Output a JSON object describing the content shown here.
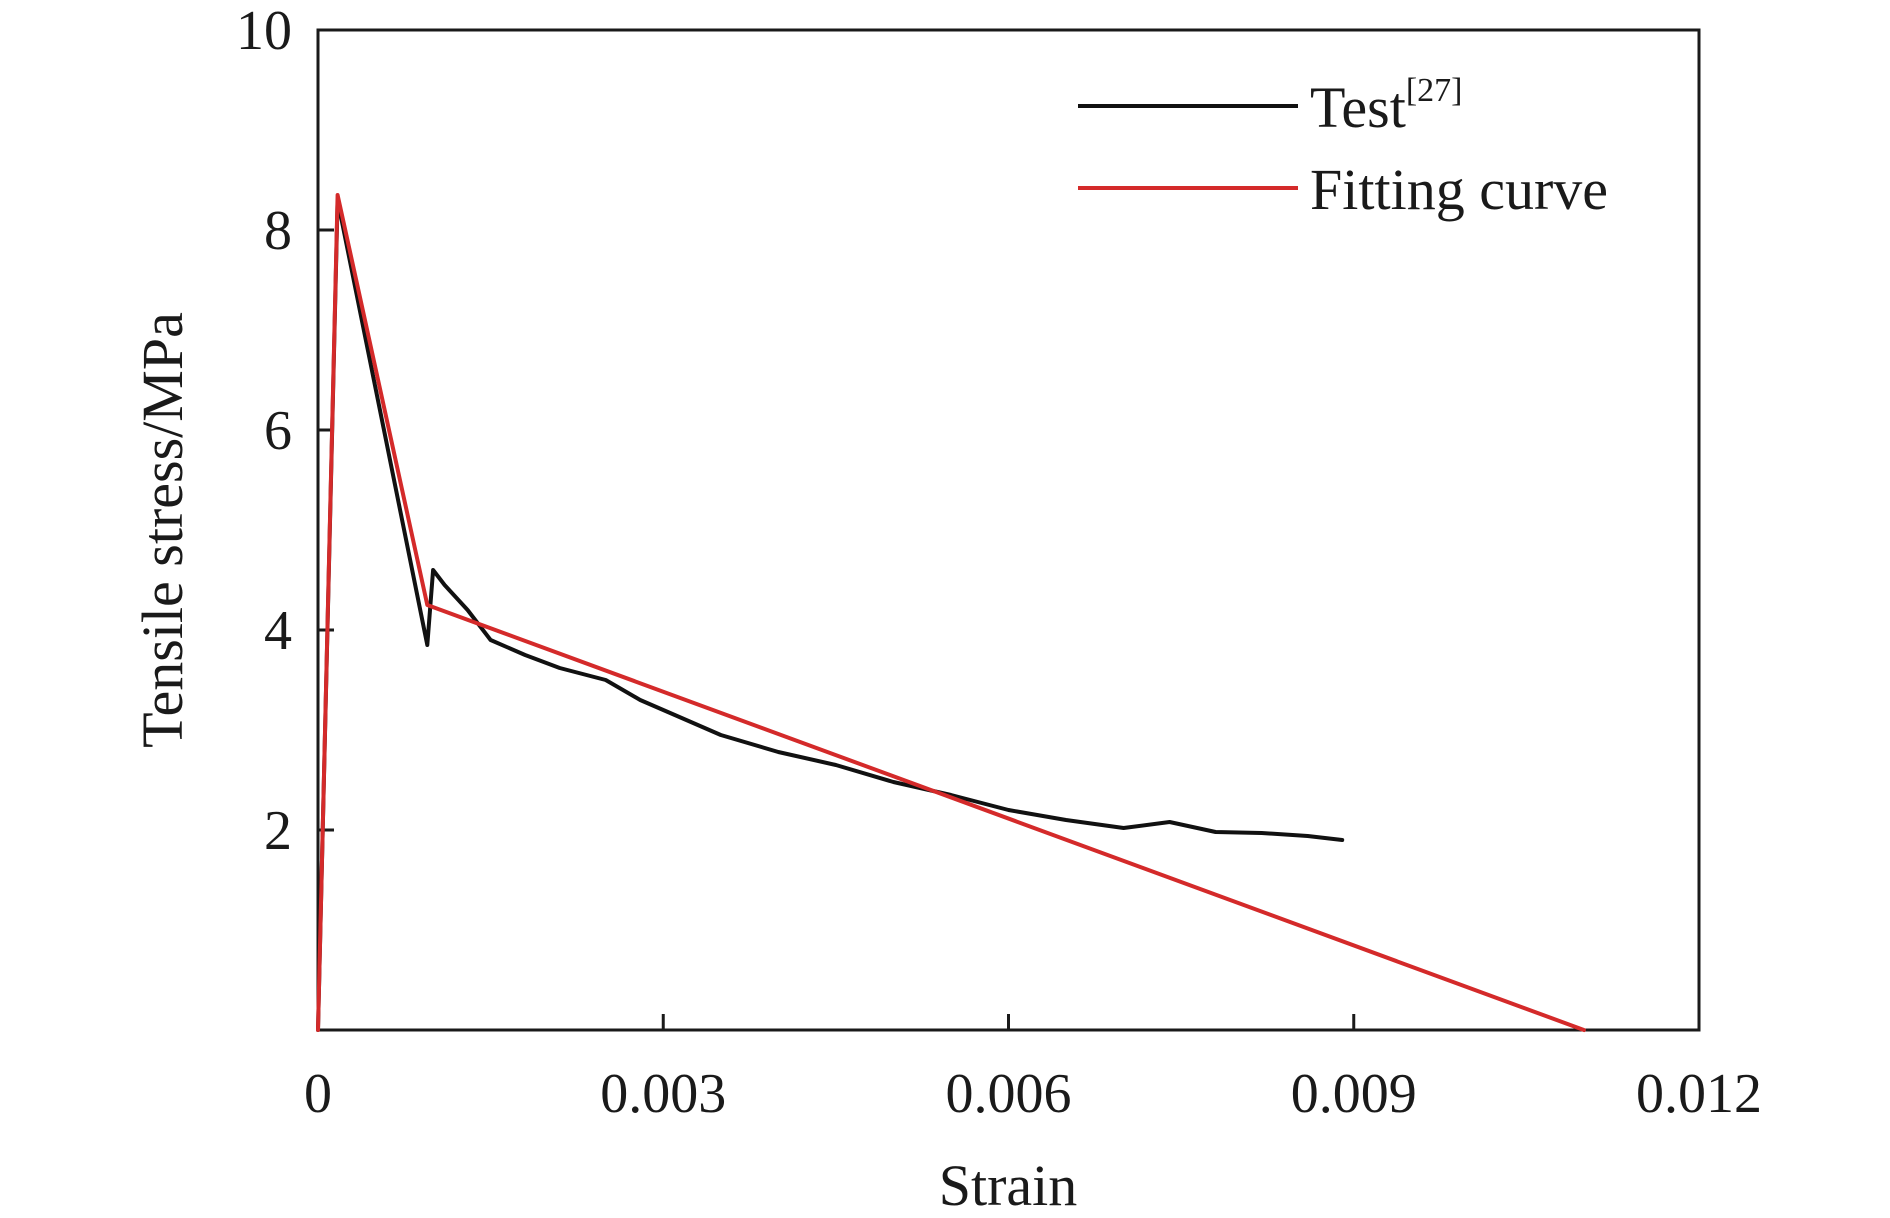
{
  "chart_data": {
    "type": "line",
    "xlabel": "Strain",
    "ylabel": "Tensile stress/MPa",
    "xlim": [
      0,
      0.012
    ],
    "ylim": [
      0,
      10
    ],
    "x_ticks": [
      {
        "value": 0,
        "label": "0"
      },
      {
        "value": 0.003,
        "label": "0.003"
      },
      {
        "value": 0.006,
        "label": "0.006"
      },
      {
        "value": 0.009,
        "label": "0.009"
      },
      {
        "value": 0.012,
        "label": "0.012"
      }
    ],
    "y_ticks": [
      {
        "value": 2,
        "label": "2"
      },
      {
        "value": 4,
        "label": "4"
      },
      {
        "value": 6,
        "label": "6"
      },
      {
        "value": 8,
        "label": "8"
      },
      {
        "value": 10,
        "label": "10"
      }
    ],
    "grid": false,
    "legend_position": "top-right",
    "series": [
      {
        "name": "Test",
        "name_superscript": "[27]",
        "color": "#111111",
        "points": [
          [
            0,
            0
          ],
          [
            0.00017,
            8.3
          ],
          [
            0.00095,
            3.85
          ],
          [
            0.001,
            4.6
          ],
          [
            0.0011,
            4.45
          ],
          [
            0.0013,
            4.2
          ],
          [
            0.0015,
            3.9
          ],
          [
            0.0018,
            3.75
          ],
          [
            0.0021,
            3.62
          ],
          [
            0.0025,
            3.5
          ],
          [
            0.0028,
            3.3
          ],
          [
            0.0031,
            3.15
          ],
          [
            0.0035,
            2.95
          ],
          [
            0.004,
            2.78
          ],
          [
            0.0045,
            2.65
          ],
          [
            0.005,
            2.48
          ],
          [
            0.0055,
            2.35
          ],
          [
            0.006,
            2.2
          ],
          [
            0.0065,
            2.1
          ],
          [
            0.007,
            2.02
          ],
          [
            0.0074,
            2.08
          ],
          [
            0.0078,
            1.98
          ],
          [
            0.0082,
            1.97
          ],
          [
            0.0086,
            1.94
          ],
          [
            0.0089,
            1.9
          ]
        ]
      },
      {
        "name": "Fitting curve",
        "color": "#d42a2a",
        "points": [
          [
            0,
            0
          ],
          [
            0.00017,
            8.35
          ],
          [
            0.00095,
            4.25
          ],
          [
            0.011,
            0
          ]
        ]
      }
    ]
  }
}
